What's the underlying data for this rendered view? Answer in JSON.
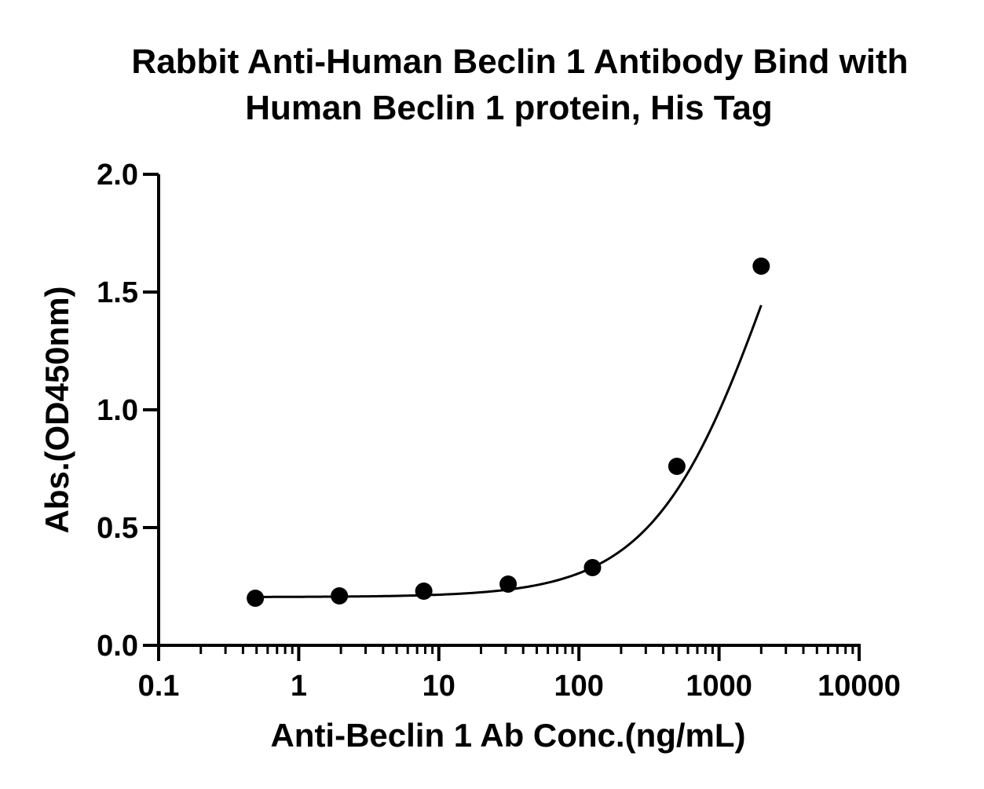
{
  "chart_data": {
    "type": "scatter",
    "title": [
      "Rabbit Anti-Human Beclin 1 Antibody Bind with",
      "Human Beclin 1 protein, His Tag"
    ],
    "xlabel": "Anti-Beclin 1 Ab Conc.(ng/mL)",
    "ylabel": "Abs.(OD450nm)",
    "x_scale": "log",
    "xlim": [
      0.1,
      10000
    ],
    "ylim": [
      0.0,
      2.0
    ],
    "x_ticks": [
      0.1,
      1,
      10,
      100,
      1000,
      10000
    ],
    "x_tick_labels": [
      "0.1",
      "1",
      "10",
      "100",
      "1000",
      "10000"
    ],
    "y_ticks": [
      0.0,
      0.5,
      1.0,
      1.5,
      2.0
    ],
    "y_tick_labels": [
      "0.0",
      "0.5",
      "1.0",
      "1.5",
      "2.0"
    ],
    "grid": false,
    "fit_curve": "4PL sigmoidal",
    "series": [
      {
        "x": [
          0.49,
          1.95,
          7.81,
          31.25,
          125,
          500,
          2000
        ],
        "y": [
          0.2,
          0.21,
          0.23,
          0.26,
          0.33,
          0.76,
          1.61
        ]
      }
    ],
    "colors": {
      "marker": "#000000",
      "curve": "#000000",
      "axis": "#000000"
    }
  }
}
